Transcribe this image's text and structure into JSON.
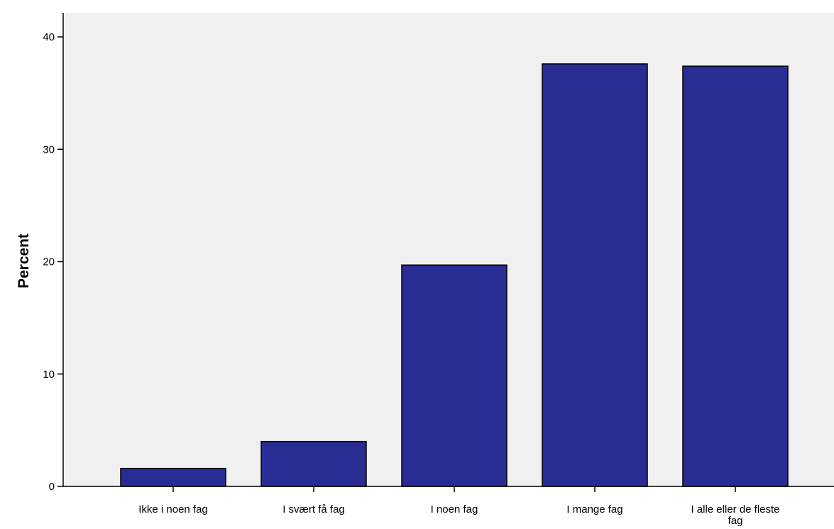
{
  "chart_data": {
    "type": "bar",
    "title": "",
    "xlabel": "",
    "ylabel": "Percent",
    "ylim": [
      0,
      40
    ],
    "yticks": [
      0,
      10,
      20,
      30,
      40
    ],
    "grid": false,
    "categories": [
      "Ikke i noen fag",
      "I svært få fag",
      "I noen fag",
      "I mange fag",
      [
        "I alle eller de fleste",
        "fag"
      ]
    ],
    "values": [
      1.6,
      4.0,
      19.7,
      37.6,
      37.4
    ],
    "colors": {
      "plot_background": "#f0f0f0",
      "bar_fill": "#292d93",
      "bar_stroke": "#000000"
    }
  }
}
